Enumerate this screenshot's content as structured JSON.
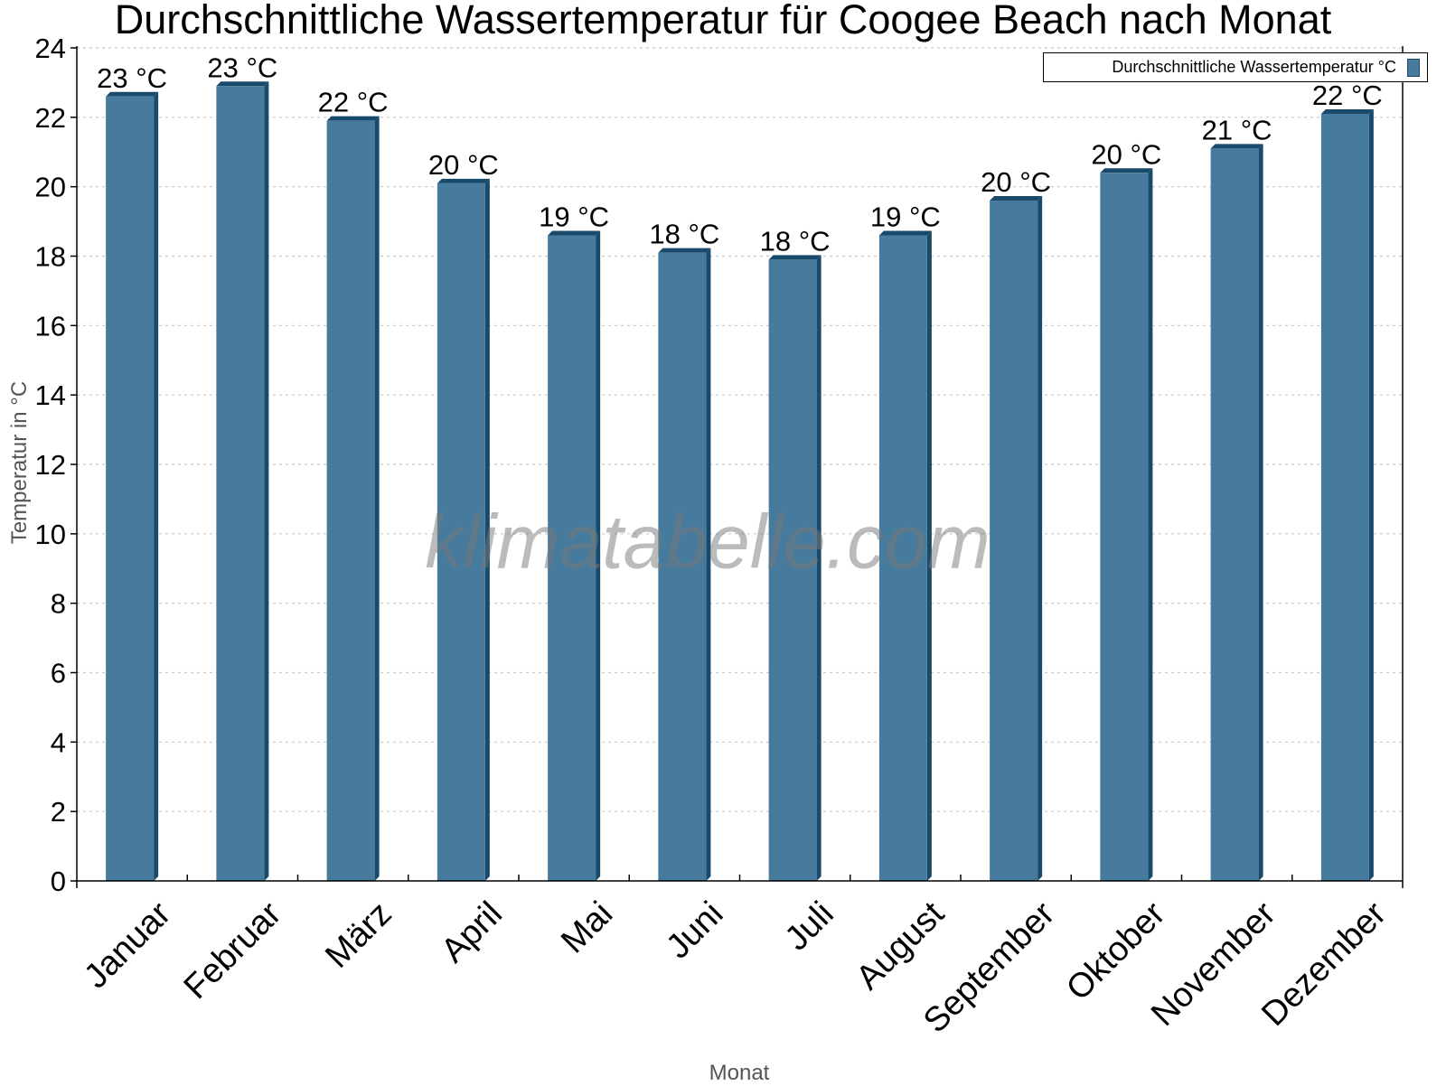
{
  "chart_data": {
    "type": "bar",
    "title": "Durchschnittliche Wassertemperatur für Coogee Beach nach Monat",
    "xlabel": "Monat",
    "ylabel": "Temperatur in °C",
    "ylim": [
      0,
      24
    ],
    "yticks": [
      0,
      2,
      4,
      6,
      8,
      10,
      12,
      14,
      16,
      18,
      20,
      22,
      24
    ],
    "grid": true,
    "legend_position": "top-right",
    "categories": [
      "Januar",
      "Februar",
      "März",
      "April",
      "Mai",
      "Juni",
      "Juli",
      "August",
      "September",
      "Oktober",
      "November",
      "Dezember"
    ],
    "series": [
      {
        "name": "Durchschnittliche Wassertemperatur °C",
        "color": "#467b9d",
        "values": [
          22.6,
          22.9,
          21.9,
          20.1,
          18.6,
          18.1,
          17.9,
          18.6,
          19.6,
          20.4,
          21.1,
          22.1
        ],
        "data_labels": [
          "23 °C",
          "23 °C",
          "22 °C",
          "20 °C",
          "19 °C",
          "18 °C",
          "18 °C",
          "19 °C",
          "20 °C",
          "20 °C",
          "21 °C",
          "22 °C"
        ]
      }
    ],
    "watermark": "klimatabelle.com"
  },
  "legend": {
    "label": "Durchschnittliche Wassertemperatur °C"
  },
  "colors": {
    "bar_face": "#467b9d",
    "bar_side": "#1a4a6b",
    "grid": "#c8c8c8",
    "axis": "#000000"
  }
}
